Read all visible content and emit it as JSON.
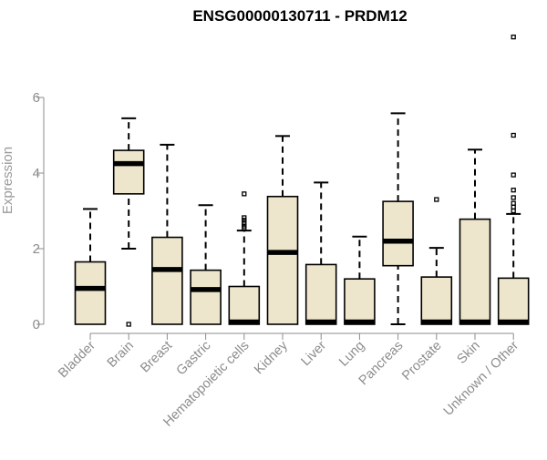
{
  "chart_data": {
    "type": "boxplot",
    "title": "ENSG00000130711 - PRDM12",
    "ylabel": "Expression",
    "xlabel": "",
    "ylim": [
      0,
      8
    ],
    "yticks": [
      0,
      2,
      4,
      6
    ],
    "grid": false,
    "legend": "none",
    "categories": [
      "Bladder",
      "Brain",
      "Breast",
      "Gastric",
      "Hematopoietic cells",
      "Kidney",
      "Liver",
      "Lung",
      "Pancreas",
      "Prostate",
      "Skin",
      "Unknown / Other"
    ],
    "boxes": [
      {
        "category": "Bladder",
        "whisker_low": 0,
        "q1": 0,
        "median": 0.95,
        "q3": 1.65,
        "whisker_high": 3.05,
        "outliers": []
      },
      {
        "category": "Brain",
        "whisker_low": 2.0,
        "q1": 3.45,
        "median": 4.25,
        "q3": 4.6,
        "whisker_high": 5.45,
        "outliers": [
          0.0
        ]
      },
      {
        "category": "Breast",
        "whisker_low": 0,
        "q1": 0,
        "median": 1.45,
        "q3": 2.3,
        "whisker_high": 4.75,
        "outliers": []
      },
      {
        "category": "Gastric",
        "whisker_low": 0,
        "q1": 0,
        "median": 0.92,
        "q3": 1.43,
        "whisker_high": 3.15,
        "outliers": []
      },
      {
        "category": "Hematopoietic cells",
        "whisker_low": 0,
        "q1": 0,
        "median": 0.02,
        "q3": 1.0,
        "whisker_high": 2.48,
        "outliers": [
          2.55,
          2.6,
          2.68,
          2.75,
          2.82,
          3.45
        ]
      },
      {
        "category": "Kidney",
        "whisker_low": 0,
        "q1": 0,
        "median": 1.9,
        "q3": 3.38,
        "whisker_high": 4.98,
        "outliers": []
      },
      {
        "category": "Liver",
        "whisker_low": 0,
        "q1": 0,
        "median": 0.02,
        "q3": 1.58,
        "whisker_high": 3.75,
        "outliers": []
      },
      {
        "category": "Lung",
        "whisker_low": 0,
        "q1": 0,
        "median": 0.02,
        "q3": 1.2,
        "whisker_high": 2.32,
        "outliers": []
      },
      {
        "category": "Pancreas",
        "whisker_low": 0,
        "q1": 1.55,
        "median": 2.2,
        "q3": 3.25,
        "whisker_high": 5.58,
        "outliers": []
      },
      {
        "category": "Prostate",
        "whisker_low": 0,
        "q1": 0,
        "median": 0.02,
        "q3": 1.25,
        "whisker_high": 2.02,
        "outliers": [
          3.3
        ]
      },
      {
        "category": "Skin",
        "whisker_low": 0,
        "q1": 0,
        "median": 0.02,
        "q3": 2.78,
        "whisker_high": 4.62,
        "outliers": []
      },
      {
        "category": "Unknown / Other",
        "whisker_low": 0,
        "q1": 0,
        "median": 0.02,
        "q3": 1.22,
        "whisker_high": 2.92,
        "outliers": [
          3.0,
          3.1,
          3.2,
          3.35,
          3.55,
          3.95,
          5.0,
          7.6
        ]
      }
    ],
    "colors": {
      "box_fill": "#ede6cc",
      "box_stroke": "#000000",
      "axis": "#8c8c8c",
      "title": "#000000"
    }
  }
}
